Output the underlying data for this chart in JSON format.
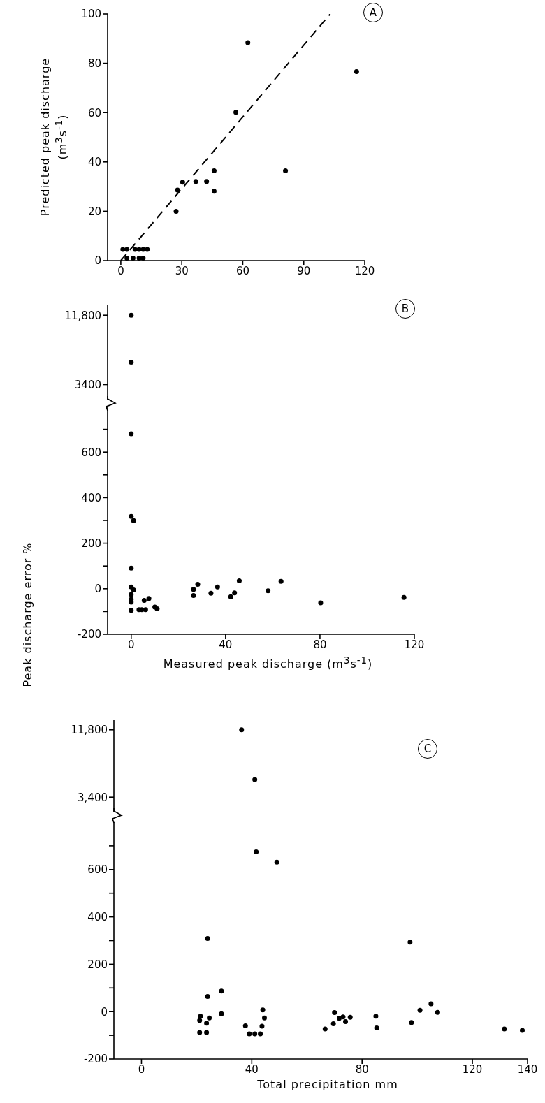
{
  "chart_data": [
    {
      "type": "scatter",
      "ylabel": "Predicted peak discharge (m$^{3}$s$^{-1}$)",
      "annotations": [
        "A"
      ],
      "xlim": [
        -6.5,
        120
      ],
      "xticks": [
        0,
        30,
        60,
        90,
        120
      ],
      "ylim": [
        0,
        100
      ],
      "yticks": [
        0,
        20,
        40,
        60,
        80,
        100
      ],
      "grid": false,
      "legend": false,
      "series": [
        {
          "type": "scatter",
          "color": "#000000",
          "marker": "circle",
          "x": [
            62.5,
            116,
            56.6,
            81,
            45.9,
            45.9,
            42.2,
            36.9,
            30.4,
            27.9,
            27.2,
            1,
            3,
            7,
            9,
            11,
            13,
            3,
            6,
            9,
            11
          ],
          "values": [
            88.4,
            76.6,
            60.1,
            36.4,
            36.4,
            28.1,
            32.1,
            32.1,
            31.8,
            28.6,
            20,
            4.5,
            4.5,
            4.5,
            4.5,
            4.5,
            4.5,
            1,
            1,
            1,
            1
          ]
        },
        {
          "type": "line",
          "color": "#000000",
          "line_style": "dashed",
          "x": [
            0,
            103
          ],
          "values": [
            0,
            100
          ]
        }
      ]
    },
    {
      "type": "scatter",
      "annotations": [
        "B"
      ],
      "tick_labels": "y",
      "xlim": [
        -10,
        120
      ],
      "ylim": [
        1500,
        13000
      ],
      "yticks": [
        3400,
        {
          "value": 11800,
          "label": "11,800"
        }
      ],
      "grid": false,
      "legend": false,
      "series": [
        {
          "type": "scatter",
          "color": "#000000",
          "marker": "circle",
          "x": [
            0,
            0
          ],
          "values": [
            11800,
            6100
          ]
        }
      ]
    },
    {
      "type": "scatter",
      "ylabel": "Peak discharge error %",
      "xlabel": "Measured peak discharge (m$^{3}$s$^{-1}$)",
      "xlim": [
        -10,
        120
      ],
      "xticks": [
        0,
        40,
        80,
        120
      ],
      "ylim": [
        -200,
        800
      ],
      "yticks": [
        -200,
        {
          "value": -100,
          "label": null
        },
        0,
        {
          "value": 100,
          "label": null
        },
        200,
        {
          "value": 300,
          "label": null
        },
        400,
        {
          "value": 500,
          "label": null
        },
        600,
        {
          "value": 700,
          "label": null
        }
      ],
      "grid": false,
      "legend": false,
      "series": [
        {
          "type": "scatter",
          "color": "#000000",
          "marker": "circle",
          "x": [
            0,
            0,
            1,
            0,
            0,
            1,
            0,
            0,
            0,
            0,
            3.3,
            4.5,
            6.1,
            5.5,
            7.5,
            10,
            11,
            26.4,
            26.4,
            28.2,
            33.8,
            36.6,
            42.2,
            43.8,
            45.8,
            58,
            63.5,
            80.3,
            115.6
          ],
          "values": [
            680,
            318,
            299,
            91,
            8,
            -5,
            -25,
            -47,
            -59,
            -95,
            -92,
            -92,
            -92,
            -51,
            -43,
            -80,
            -88,
            -3,
            -30,
            19,
            -20,
            8,
            -35,
            -18,
            35,
            -9,
            32,
            -62,
            -38
          ]
        }
      ]
    },
    {
      "type": "scatter",
      "annotations": [
        "C"
      ],
      "tick_labels": "y",
      "xlim": [
        -10,
        140
      ],
      "ylim": [
        1500,
        13000
      ],
      "yticks": [
        {
          "value": 3400,
          "label": "3,400"
        },
        {
          "value": 11800,
          "label": "11,800"
        }
      ],
      "grid": false,
      "legend": false,
      "series": [
        {
          "type": "scatter",
          "color": "#000000",
          "marker": "circle",
          "x": [
            36.3,
            41.1
          ],
          "values": [
            11800,
            5600
          ]
        }
      ]
    },
    {
      "type": "scatter",
      "xlabel": "Total precipitation mm",
      "xlim": [
        -10,
        140
      ],
      "xticks": [
        0,
        40,
        80,
        120,
        140
      ],
      "ylim": [
        -200,
        800
      ],
      "yticks": [
        -200,
        {
          "value": -100,
          "label": null
        },
        0,
        {
          "value": 100,
          "label": null
        },
        200,
        {
          "value": 300,
          "label": null
        },
        400,
        {
          "value": 500,
          "label": null
        },
        600,
        {
          "value": 700,
          "label": null
        }
      ],
      "grid": false,
      "legend": false,
      "series": [
        {
          "type": "scatter",
          "color": "#000000",
          "marker": "circle",
          "x": [
            41.6,
            49.1,
            24,
            97.4,
            24,
            29,
            29,
            21.4,
            24.6,
            21.1,
            23.6,
            21.1,
            23.6,
            37.7,
            39.1,
            41.1,
            43.1,
            43.7,
            44,
            44.6,
            66.6,
            69.6,
            70,
            71.7,
            73.1,
            74,
            75.7,
            85,
            85.3,
            97.9,
            101,
            105,
            107.4,
            131.6,
            138.1
          ],
          "values": [
            675,
            631,
            309,
            293,
            64,
            87,
            -9,
            -19,
            -27,
            -37,
            -49,
            -88,
            -88,
            -60,
            -94,
            -94,
            -94,
            -61,
            7,
            -27,
            -73,
            -51,
            -4,
            -28,
            -22,
            -42,
            -24,
            -19,
            -69,
            -46,
            6,
            33,
            -3,
            -73,
            -79
          ]
        }
      ]
    }
  ]
}
